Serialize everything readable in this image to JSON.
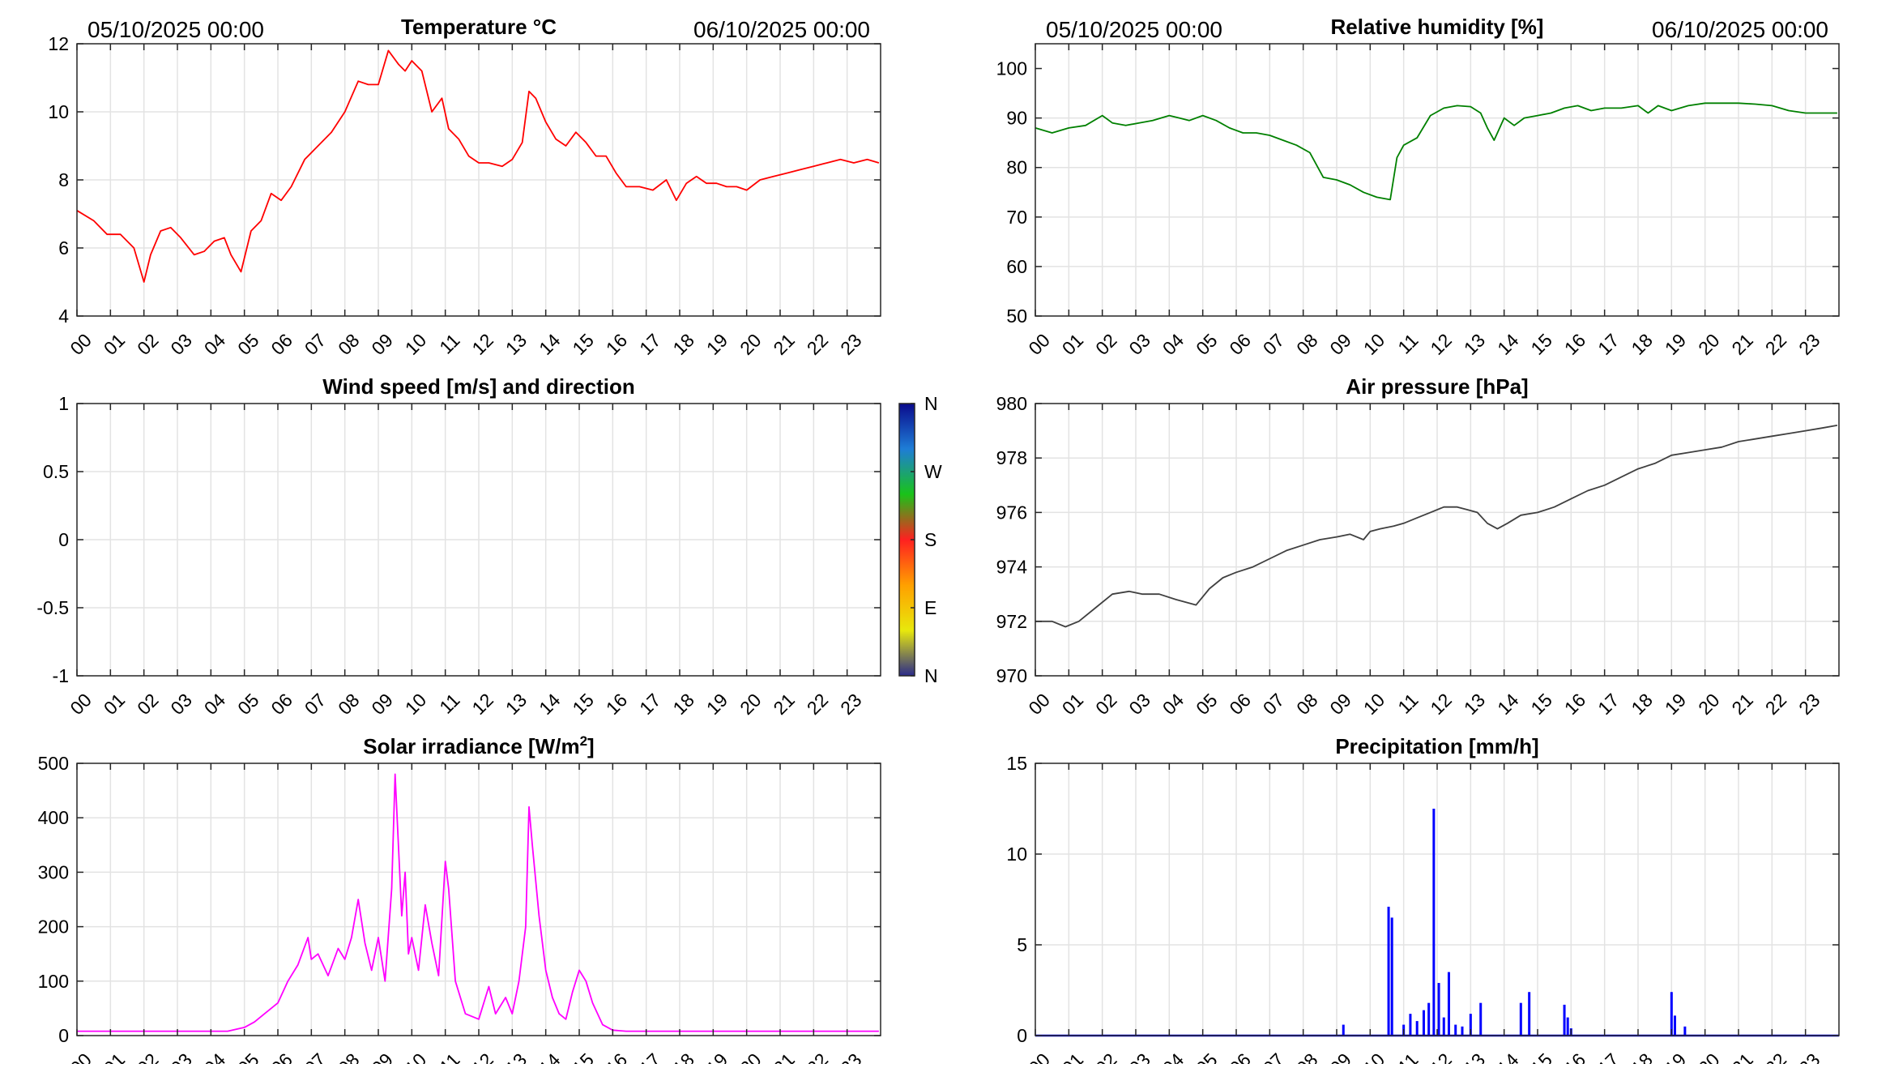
{
  "dates": {
    "start": "05/10/2025 00:00",
    "end": "06/10/2025 00:00"
  },
  "hours": [
    "00",
    "01",
    "02",
    "03",
    "04",
    "05",
    "06",
    "07",
    "08",
    "09",
    "10",
    "11",
    "12",
    "13",
    "14",
    "15",
    "16",
    "17",
    "18",
    "19",
    "20",
    "21",
    "22",
    "23"
  ],
  "colorbar": {
    "labels": [
      "N",
      "W",
      "S",
      "E",
      "N"
    ],
    "colors": [
      "#0a0a8c",
      "#1e7dd6",
      "#19c319",
      "#ff2020",
      "#ffa000",
      "#e8e80c",
      "#2a2a8a"
    ]
  },
  "chart_data": [
    {
      "id": "temperature",
      "type": "line",
      "title": "Temperature °C",
      "color": "#ff0000",
      "ylim": [
        4,
        12
      ],
      "yticks": [
        4,
        6,
        8,
        10,
        12
      ],
      "ytick_labels": [
        "4",
        "6",
        "8",
        "10",
        "12"
      ],
      "x": [
        0,
        0.5,
        0.9,
        1.3,
        1.7,
        2.0,
        2.2,
        2.5,
        2.8,
        3.1,
        3.5,
        3.8,
        4.1,
        4.4,
        4.6,
        4.9,
        5.2,
        5.5,
        5.8,
        6.1,
        6.4,
        6.8,
        7.2,
        7.6,
        8.0,
        8.4,
        8.7,
        9.0,
        9.3,
        9.6,
        9.8,
        10.0,
        10.3,
        10.6,
        10.9,
        11.1,
        11.4,
        11.7,
        12.0,
        12.3,
        12.7,
        13.0,
        13.3,
        13.5,
        13.7,
        14.0,
        14.3,
        14.6,
        14.9,
        15.2,
        15.5,
        15.8,
        16.1,
        16.4,
        16.8,
        17.2,
        17.6,
        17.9,
        18.2,
        18.5,
        18.8,
        19.1,
        19.4,
        19.7,
        20.0,
        20.4,
        20.8,
        21.2,
        21.6,
        22.0,
        22.4,
        22.8,
        23.2,
        23.6,
        23.95
      ],
      "y": [
        7.1,
        6.8,
        6.4,
        6.4,
        6.0,
        5.0,
        5.8,
        6.5,
        6.6,
        6.3,
        5.8,
        5.9,
        6.2,
        6.3,
        5.8,
        5.3,
        6.5,
        6.8,
        7.6,
        7.4,
        7.8,
        8.6,
        9.0,
        9.4,
        10.0,
        10.9,
        10.8,
        10.8,
        11.8,
        11.4,
        11.2,
        11.5,
        11.2,
        10.0,
        10.4,
        9.5,
        9.2,
        8.7,
        8.5,
        8.5,
        8.4,
        8.6,
        9.1,
        10.6,
        10.4,
        9.7,
        9.2,
        9.0,
        9.4,
        9.1,
        8.7,
        8.7,
        8.2,
        7.8,
        7.8,
        7.7,
        8.0,
        7.4,
        7.9,
        8.1,
        7.9,
        7.9,
        7.8,
        7.8,
        7.7,
        8.0,
        8.1,
        8.2,
        8.3,
        8.4,
        8.5,
        8.6,
        8.5,
        8.6,
        8.5
      ]
    },
    {
      "id": "humidity",
      "type": "line",
      "title": "Relative humidity [%]",
      "color": "#008000",
      "ylim": [
        50,
        105
      ],
      "yticks": [
        50,
        60,
        70,
        80,
        90,
        100
      ],
      "ytick_labels": [
        "50",
        "60",
        "70",
        "80",
        "90",
        "100"
      ],
      "x": [
        0,
        0.5,
        1.0,
        1.5,
        2.0,
        2.3,
        2.7,
        3.1,
        3.5,
        4.0,
        4.3,
        4.6,
        5.0,
        5.4,
        5.8,
        6.2,
        6.6,
        7.0,
        7.4,
        7.8,
        8.2,
        8.6,
        9.0,
        9.4,
        9.8,
        10.2,
        10.6,
        10.8,
        11.0,
        11.4,
        11.8,
        12.2,
        12.6,
        13.0,
        13.3,
        13.5,
        13.7,
        14.0,
        14.3,
        14.6,
        15.0,
        15.4,
        15.8,
        16.2,
        16.6,
        17.0,
        17.5,
        18.0,
        18.3,
        18.6,
        19.0,
        19.5,
        20.0,
        20.5,
        21.0,
        21.5,
        22.0,
        22.5,
        23.0,
        23.5,
        23.95
      ],
      "y": [
        88,
        87,
        88,
        88.5,
        90.5,
        89,
        88.5,
        89,
        89.5,
        90.5,
        90,
        89.5,
        90.5,
        89.5,
        88,
        87,
        87,
        86.5,
        85.5,
        84.5,
        83,
        78,
        77.5,
        76.5,
        75,
        74,
        73.5,
        82,
        84.5,
        86,
        90.5,
        92,
        92.5,
        92.3,
        91,
        88,
        85.5,
        90,
        88.5,
        90,
        90.5,
        91,
        92,
        92.5,
        91.5,
        92,
        92,
        92.5,
        91,
        92.5,
        91.5,
        92.5,
        93,
        93,
        93,
        92.8,
        92.5,
        91.5,
        91,
        91,
        91
      ]
    },
    {
      "id": "wind",
      "type": "scatter",
      "title": "Wind speed [m/s] and direction",
      "ylim": [
        -1,
        1
      ],
      "yticks": [
        -1,
        -0.5,
        0,
        0.5,
        1
      ],
      "ytick_labels": [
        "-1",
        "-0.5",
        "0",
        "0.5",
        "1"
      ],
      "x": [],
      "y": []
    },
    {
      "id": "pressure",
      "type": "line",
      "title": "Air pressure [hPa]",
      "color": "#404040",
      "ylim": [
        970,
        980
      ],
      "yticks": [
        970,
        972,
        974,
        976,
        978,
        980
      ],
      "ytick_labels": [
        "970",
        "972",
        "974",
        "976",
        "978",
        "980"
      ],
      "x": [
        0,
        0.5,
        0.9,
        1.3,
        1.8,
        2.3,
        2.8,
        3.2,
        3.7,
        4.2,
        4.8,
        5.2,
        5.6,
        6.0,
        6.5,
        7.0,
        7.5,
        8.0,
        8.5,
        9.0,
        9.4,
        9.8,
        10.0,
        10.3,
        10.7,
        11.0,
        11.4,
        11.8,
        12.2,
        12.6,
        12.9,
        13.2,
        13.5,
        13.8,
        14.1,
        14.5,
        15.0,
        15.5,
        16.0,
        16.5,
        17.0,
        17.5,
        18.0,
        18.5,
        19.0,
        19.5,
        20.0,
        20.5,
        21.0,
        21.5,
        22.0,
        22.5,
        23.0,
        23.5,
        23.95
      ],
      "y": [
        972.0,
        972.0,
        971.8,
        972.0,
        972.5,
        973.0,
        973.1,
        973.0,
        973.0,
        972.8,
        972.6,
        973.2,
        973.6,
        973.8,
        974.0,
        974.3,
        974.6,
        974.8,
        975.0,
        975.1,
        975.2,
        975.0,
        975.3,
        975.4,
        975.5,
        975.6,
        975.8,
        976.0,
        976.2,
        976.2,
        976.1,
        976.0,
        975.6,
        975.4,
        975.6,
        975.9,
        976.0,
        976.2,
        976.5,
        976.8,
        977.0,
        977.3,
        977.6,
        977.8,
        978.1,
        978.2,
        978.3,
        978.4,
        978.6,
        978.7,
        978.8,
        978.9,
        979.0,
        979.1,
        979.2
      ]
    },
    {
      "id": "solar",
      "type": "line",
      "title": "Solar irradiance [W/m2]",
      "title_main": "Solar irradiance [W/m",
      "title_sup": "2",
      "title_end": "]",
      "color": "#ff00ff",
      "ylim": [
        0,
        500
      ],
      "yticks": [
        0,
        100,
        200,
        300,
        400,
        500
      ],
      "ytick_labels": [
        "0",
        "100",
        "200",
        "300",
        "400",
        "500"
      ],
      "x": [
        0,
        4.5,
        5.0,
        5.3,
        5.6,
        6.0,
        6.3,
        6.6,
        6.9,
        7.0,
        7.2,
        7.5,
        7.8,
        8.0,
        8.2,
        8.4,
        8.6,
        8.8,
        9.0,
        9.2,
        9.4,
        9.5,
        9.6,
        9.7,
        9.8,
        9.9,
        10.0,
        10.2,
        10.4,
        10.6,
        10.8,
        11.0,
        11.1,
        11.3,
        11.6,
        12.0,
        12.3,
        12.5,
        12.8,
        13.0,
        13.2,
        13.4,
        13.5,
        13.6,
        13.8,
        14.0,
        14.2,
        14.4,
        14.6,
        14.8,
        15.0,
        15.2,
        15.4,
        15.7,
        16.0,
        16.4,
        17.0,
        23.95
      ],
      "y": [
        8,
        8,
        15,
        25,
        40,
        60,
        100,
        130,
        180,
        140,
        150,
        110,
        160,
        140,
        180,
        250,
        170,
        120,
        180,
        100,
        270,
        480,
        350,
        220,
        300,
        150,
        180,
        120,
        240,
        170,
        110,
        320,
        270,
        100,
        40,
        30,
        90,
        40,
        70,
        40,
        100,
        200,
        420,
        350,
        220,
        120,
        70,
        40,
        30,
        80,
        120,
        100,
        60,
        20,
        10,
        8,
        8,
        8
      ]
    },
    {
      "id": "precipitation",
      "type": "bar",
      "title": "Precipitation [mm/h]",
      "color": "#0000ff",
      "ylim": [
        0,
        15
      ],
      "yticks": [
        0,
        5,
        10,
        15
      ],
      "ytick_labels": [
        "0",
        "5",
        "10",
        "15"
      ],
      "x": [
        9.2,
        10.55,
        10.65,
        11.0,
        11.2,
        11.4,
        11.6,
        11.75,
        11.9,
        12.05,
        12.2,
        12.35,
        12.55,
        12.75,
        13.0,
        13.3,
        14.5,
        14.75,
        15.8,
        15.9,
        16.0,
        19.0,
        19.1,
        19.4
      ],
      "y": [
        0.6,
        7.1,
        6.5,
        0.6,
        1.2,
        0.8,
        1.4,
        1.8,
        12.5,
        2.9,
        1.0,
        3.5,
        0.6,
        0.5,
        1.2,
        1.8,
        1.8,
        2.4,
        1.7,
        1.0,
        0.4,
        2.4,
        1.1,
        0.5
      ]
    }
  ]
}
